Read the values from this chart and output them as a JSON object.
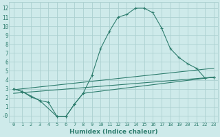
{
  "xlabel": "Humidex (Indice chaleur)",
  "bg_color": "#ceeaea",
  "grid_color": "#acd0d0",
  "line_color": "#2e7d6e",
  "xlim": [
    -0.5,
    23.5
  ],
  "ylim": [
    -0.7,
    12.7
  ],
  "xticks": [
    0,
    1,
    2,
    3,
    4,
    5,
    6,
    7,
    8,
    9,
    10,
    11,
    12,
    13,
    14,
    15,
    16,
    17,
    18,
    19,
    20,
    21,
    22,
    23
  ],
  "yticks": [
    0,
    1,
    2,
    3,
    4,
    5,
    6,
    7,
    8,
    9,
    10,
    11,
    12
  ],
  "line1_x": [
    0,
    1,
    2,
    3,
    4,
    5,
    6,
    7,
    8,
    9,
    10,
    11,
    12,
    13,
    14,
    15,
    16,
    17,
    18,
    19,
    20,
    21,
    22,
    23
  ],
  "line1_y": [
    3.0,
    2.7,
    2.1,
    1.7,
    1.5,
    -0.1,
    -0.1,
    1.3,
    2.5,
    4.5,
    7.5,
    9.4,
    11.0,
    11.3,
    12.0,
    12.0,
    11.5,
    9.8,
    7.5,
    6.5,
    5.8,
    5.3,
    4.2,
    4.3
  ],
  "line2_x": [
    0,
    1,
    3,
    5,
    6,
    7,
    8,
    23
  ],
  "line2_y": [
    3.0,
    2.7,
    1.7,
    -0.1,
    -0.1,
    1.3,
    2.5,
    4.3
  ],
  "line3_x": [
    0,
    23
  ],
  "line3_y": [
    2.9,
    5.3
  ],
  "line4_x": [
    0,
    23
  ],
  "line4_y": [
    2.5,
    4.3
  ]
}
